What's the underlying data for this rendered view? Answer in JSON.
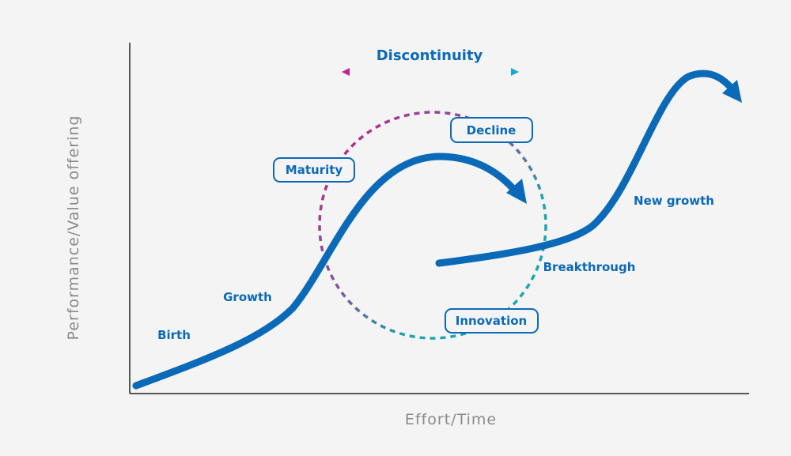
{
  "title": "Discontinuity",
  "axes": {
    "x_label": "Effort/Time",
    "y_label": "Performance/Value offering"
  },
  "stages": {
    "birth": "Birth",
    "growth": "Growth",
    "maturity": "Maturity",
    "decline": "Decline",
    "innovation": "Innovation",
    "breakthrough": "Breakthrough",
    "new_growth": "New growth"
  }
}
